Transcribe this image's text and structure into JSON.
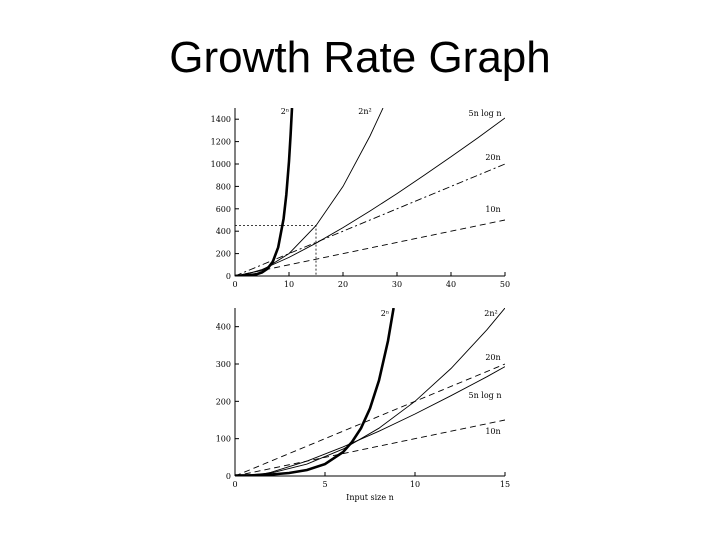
{
  "title": "Growth Rate Graph",
  "chart_data": [
    {
      "type": "line",
      "xlim": [
        0,
        50
      ],
      "ylim": [
        0,
        1500
      ],
      "x_ticks": [
        "0",
        "10",
        "20",
        "30",
        "40",
        "50"
      ],
      "y_ticks": [
        "0",
        "200",
        "400",
        "600",
        "800",
        "1000",
        "1200",
        "1400"
      ],
      "x_tick_values": [
        0,
        10,
        20,
        30,
        40,
        50
      ],
      "y_tick_values": [
        0,
        200,
        400,
        600,
        800,
        1000,
        1200,
        1400
      ],
      "xlabel": "",
      "ylabel": "",
      "zoom_box": {
        "x": [
          0,
          15
        ],
        "y": [
          0,
          450
        ]
      },
      "series": [
        {
          "name": "2ⁿ",
          "style": "bold",
          "x": [
            0,
            2,
            4,
            5,
            6,
            7,
            8,
            9,
            9.5,
            10,
            10.3,
            10.55
          ],
          "y": [
            1,
            4,
            16,
            32,
            64,
            128,
            256,
            512,
            724,
            1024,
            1261,
            1500
          ]
        },
        {
          "name": "2n²",
          "style": "solid",
          "x": [
            0,
            5,
            10,
            15,
            20,
            25,
            27.4
          ],
          "y": [
            0,
            50,
            200,
            450,
            800,
            1250,
            1500
          ]
        },
        {
          "name": "5n log n",
          "style": "solid",
          "x": [
            1,
            5,
            10,
            15,
            20,
            25,
            30,
            35,
            40,
            45,
            50
          ],
          "y": [
            0,
            58,
            166,
            293,
            432,
            580,
            736,
            898,
            1064,
            1235,
            1411
          ]
        },
        {
          "name": "20n",
          "style": "dashdot",
          "x": [
            0,
            50
          ],
          "y": [
            0,
            1000
          ]
        },
        {
          "name": "10n",
          "style": "dashed",
          "x": [
            0,
            50
          ],
          "y": [
            0,
            500
          ]
        }
      ]
    },
    {
      "type": "line",
      "xlim": [
        0,
        15
      ],
      "ylim": [
        0,
        450
      ],
      "x_ticks": [
        "0",
        "5",
        "10",
        "15"
      ],
      "y_ticks": [
        "0",
        "100",
        "200",
        "300",
        "400"
      ],
      "x_tick_values": [
        0,
        5,
        10,
        15
      ],
      "y_tick_values": [
        0,
        100,
        200,
        300,
        400
      ],
      "xlabel": "Input size n",
      "ylabel": "",
      "series": [
        {
          "name": "2ⁿ",
          "style": "bold",
          "x": [
            0,
            1,
            2,
            3,
            4,
            5,
            6,
            6.5,
            7,
            7.5,
            8,
            8.5,
            8.81
          ],
          "y": [
            1,
            2,
            4,
            8,
            16,
            32,
            64,
            91,
            128,
            181,
            256,
            362,
            450
          ]
        },
        {
          "name": "2n²",
          "style": "solid",
          "x": [
            0,
            2,
            4,
            6,
            8,
            10,
            12,
            14,
            15
          ],
          "y": [
            0,
            8,
            32,
            72,
            128,
            200,
            288,
            392,
            450
          ]
        },
        {
          "name": "20n",
          "style": "dashed",
          "x": [
            0,
            15
          ],
          "y": [
            0,
            300
          ]
        },
        {
          "name": "5n log n",
          "style": "solid",
          "x": [
            1,
            2,
            4,
            6,
            8,
            10,
            12,
            14,
            15
          ],
          "y": [
            0,
            10,
            40,
            78,
            120,
            166,
            215,
            266,
            293
          ]
        },
        {
          "name": "10n",
          "style": "dashed",
          "x": [
            0,
            15
          ],
          "y": [
            0,
            150
          ]
        }
      ]
    }
  ]
}
